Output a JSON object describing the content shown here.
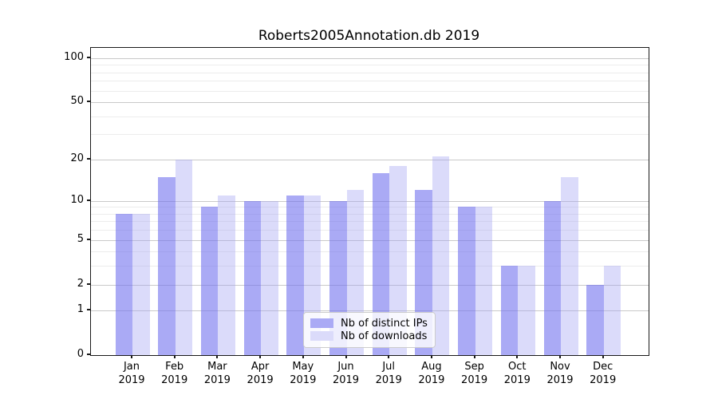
{
  "title": "Roberts2005Annotation.db 2019",
  "legend": {
    "items": [
      {
        "label": "Nb of distinct IPs",
        "color": "#aaaaf5"
      },
      {
        "label": "Nb of downloads",
        "color": "#dbdbfa"
      }
    ]
  },
  "chart_data": {
    "type": "bar",
    "title": "Roberts2005Annotation.db 2019",
    "categories": [
      "Jan",
      "Feb",
      "Mar",
      "Apr",
      "May",
      "Jun",
      "Jul",
      "Aug",
      "Sep",
      "Oct",
      "Nov",
      "Dec"
    ],
    "xtick_year": "2019",
    "series": [
      {
        "name": "Nb of distinct IPs",
        "values": [
          8,
          15,
          9,
          10,
          11,
          10,
          16,
          12,
          9,
          3,
          10,
          2
        ],
        "bar_color": "rgba(113,113,238,0.60)",
        "swatch_color": "#aaaaf5"
      },
      {
        "name": "Nb of downloads",
        "values": [
          8,
          20,
          11,
          10,
          11,
          12,
          18,
          21,
          9,
          3,
          15,
          3
        ],
        "bar_color": "rgba(165,165,243,0.40)",
        "swatch_color": "#dbdbfa"
      }
    ],
    "xlabel": "",
    "ylabel": "",
    "yscale": "log1p",
    "ylim": [
      0,
      117
    ],
    "yticks": [
      0,
      1,
      2,
      5,
      10,
      20,
      50,
      100
    ],
    "yticks_minor": [
      3,
      4,
      6,
      7,
      8,
      9,
      30,
      40,
      60,
      70,
      80,
      90
    ],
    "grid": true,
    "legend_position": "lower center"
  },
  "colors": {
    "grid_major": "#c9c9c9",
    "grid_minor": "#ececec",
    "axis": "#1a1a1a",
    "background": "#ffffff"
  }
}
